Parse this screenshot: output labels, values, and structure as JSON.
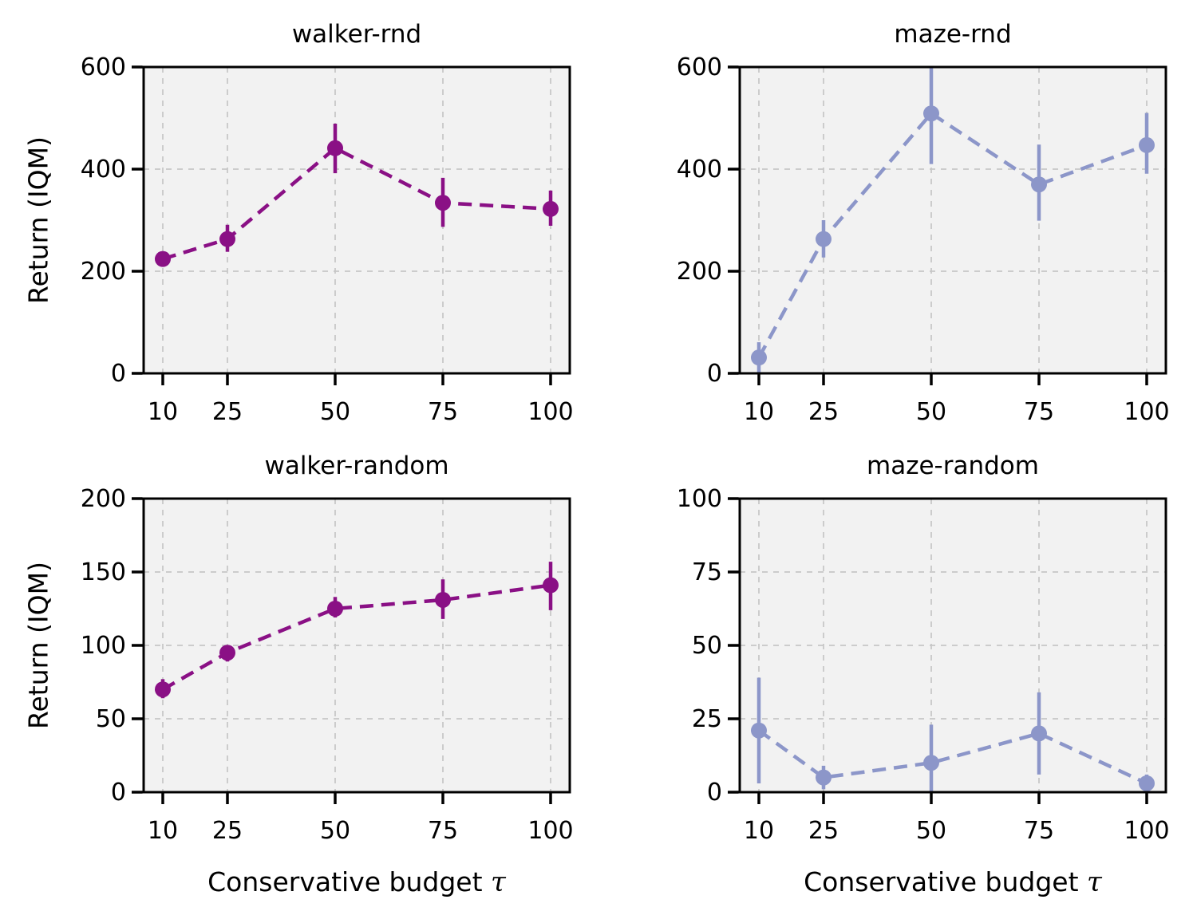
{
  "figure": {
    "ylabel": "Return (IQM)",
    "xlabel_text": "Conservative budget",
    "xlabel_symbol": "τ"
  },
  "style": {
    "walker_color": "#8A1085",
    "maze_color": "#8C96C9",
    "plot_face_color": "#F2F2F2",
    "grid_color": "#C6C6C6",
    "spine_color": "#000000",
    "tick_color": "#000000",
    "background_color": "#FFFFFF"
  },
  "chart_data": [
    {
      "id": "walker-rnd",
      "type": "line",
      "title": "walker-rnd",
      "x": [
        10,
        25,
        50,
        75,
        100
      ],
      "y": [
        224,
        263,
        441,
        334,
        322
      ],
      "yerr_low": [
        209,
        238,
        392,
        287,
        289
      ],
      "yerr_high": [
        237,
        291,
        489,
        383,
        358
      ],
      "xticks": [
        10,
        25,
        50,
        75,
        100
      ],
      "yticks": [
        0,
        200,
        400,
        600
      ],
      "ylim": [
        0,
        600
      ],
      "xlim": [
        10,
        100
      ],
      "xlabel": "",
      "ylabel": "Return (IQM)",
      "line_style": "dashed",
      "marker": "circle",
      "grid": true,
      "legend": false,
      "color": "#8A1085"
    },
    {
      "id": "maze-rnd",
      "type": "line",
      "title": "maze-rnd",
      "x": [
        10,
        25,
        50,
        75,
        100
      ],
      "y": [
        31,
        263,
        509,
        370,
        447
      ],
      "yerr_low": [
        0,
        227,
        410,
        299,
        391
      ],
      "yerr_high": [
        61,
        300,
        600,
        448,
        510
      ],
      "xticks": [
        10,
        25,
        50,
        75,
        100
      ],
      "yticks": [
        0,
        200,
        400,
        600
      ],
      "ylim": [
        0,
        600
      ],
      "xlim": [
        10,
        100
      ],
      "xlabel": "",
      "ylabel": "",
      "line_style": "dashed",
      "marker": "circle",
      "grid": true,
      "legend": false,
      "color": "#8C96C9"
    },
    {
      "id": "walker-random",
      "type": "line",
      "title": "walker-random",
      "x": [
        10,
        25,
        50,
        75,
        100
      ],
      "y": [
        70,
        95,
        125,
        131,
        141
      ],
      "yerr_low": [
        64,
        89,
        119,
        118,
        124
      ],
      "yerr_high": [
        77,
        100,
        133,
        145,
        157
      ],
      "xticks": [
        10,
        25,
        50,
        75,
        100
      ],
      "yticks": [
        0,
        50,
        100,
        150,
        200
      ],
      "ylim": [
        0,
        200
      ],
      "xlim": [
        10,
        100
      ],
      "xlabel": "Conservative budget τ",
      "ylabel": "Return (IQM)",
      "line_style": "dashed",
      "marker": "circle",
      "grid": true,
      "legend": false,
      "color": "#8A1085"
    },
    {
      "id": "maze-random",
      "type": "line",
      "title": "maze-random",
      "x": [
        10,
        25,
        50,
        75,
        100
      ],
      "y": [
        21,
        5,
        10,
        20,
        3
      ],
      "yerr_low": [
        3,
        1,
        0,
        6,
        0
      ],
      "yerr_high": [
        39,
        9,
        23,
        34,
        6
      ],
      "xticks": [
        10,
        25,
        50,
        75,
        100
      ],
      "yticks": [
        0,
        25,
        50,
        75,
        100
      ],
      "ylim": [
        0,
        100
      ],
      "xlim": [
        10,
        100
      ],
      "xlabel": "Conservative budget τ",
      "ylabel": "",
      "line_style": "dashed",
      "marker": "circle",
      "grid": true,
      "legend": false,
      "color": "#8C96C9"
    }
  ]
}
